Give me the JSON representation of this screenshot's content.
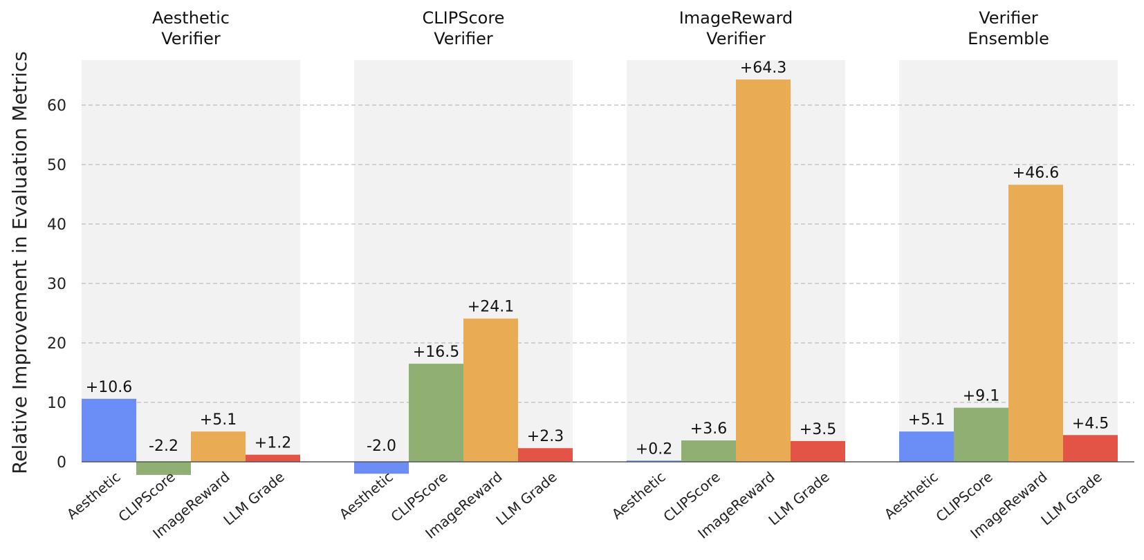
{
  "chart_data": {
    "type": "bar",
    "ylabel": "Relative Improvement in Evaluation Metrics",
    "ylim": [
      -2.2,
      67
    ],
    "yticks": [
      0,
      10,
      20,
      30,
      40,
      50,
      60
    ],
    "grid": true,
    "categories": [
      "Aesthetic",
      "CLIPScore",
      "ImageReward",
      "LLM Grade"
    ],
    "colors": [
      "#6a8ef6",
      "#8faf73",
      "#e9ab54",
      "#e35446"
    ],
    "panel_background": "#f2f2f2",
    "panels": [
      {
        "title_lines": [
          "Aesthetic",
          "Verifier"
        ],
        "values": [
          10.6,
          -2.2,
          5.1,
          1.2
        ],
        "labels": [
          "+10.6",
          "-2.2",
          "+5.1",
          "+1.2"
        ]
      },
      {
        "title_lines": [
          "CLIPScore",
          "Verifier"
        ],
        "values": [
          -2.0,
          16.5,
          24.1,
          2.3
        ],
        "labels": [
          "-2.0",
          "+16.5",
          "+24.1",
          "+2.3"
        ]
      },
      {
        "title_lines": [
          "ImageReward",
          "Verifier"
        ],
        "values": [
          0.2,
          3.6,
          64.3,
          3.5
        ],
        "labels": [
          "+0.2",
          "+3.6",
          "+64.3",
          "+3.5"
        ]
      },
      {
        "title_lines": [
          "Verifier",
          "Ensemble"
        ],
        "values": [
          5.1,
          9.1,
          46.6,
          4.5
        ],
        "labels": [
          "+5.1",
          "+9.1",
          "+46.6",
          "+4.5"
        ]
      }
    ]
  }
}
